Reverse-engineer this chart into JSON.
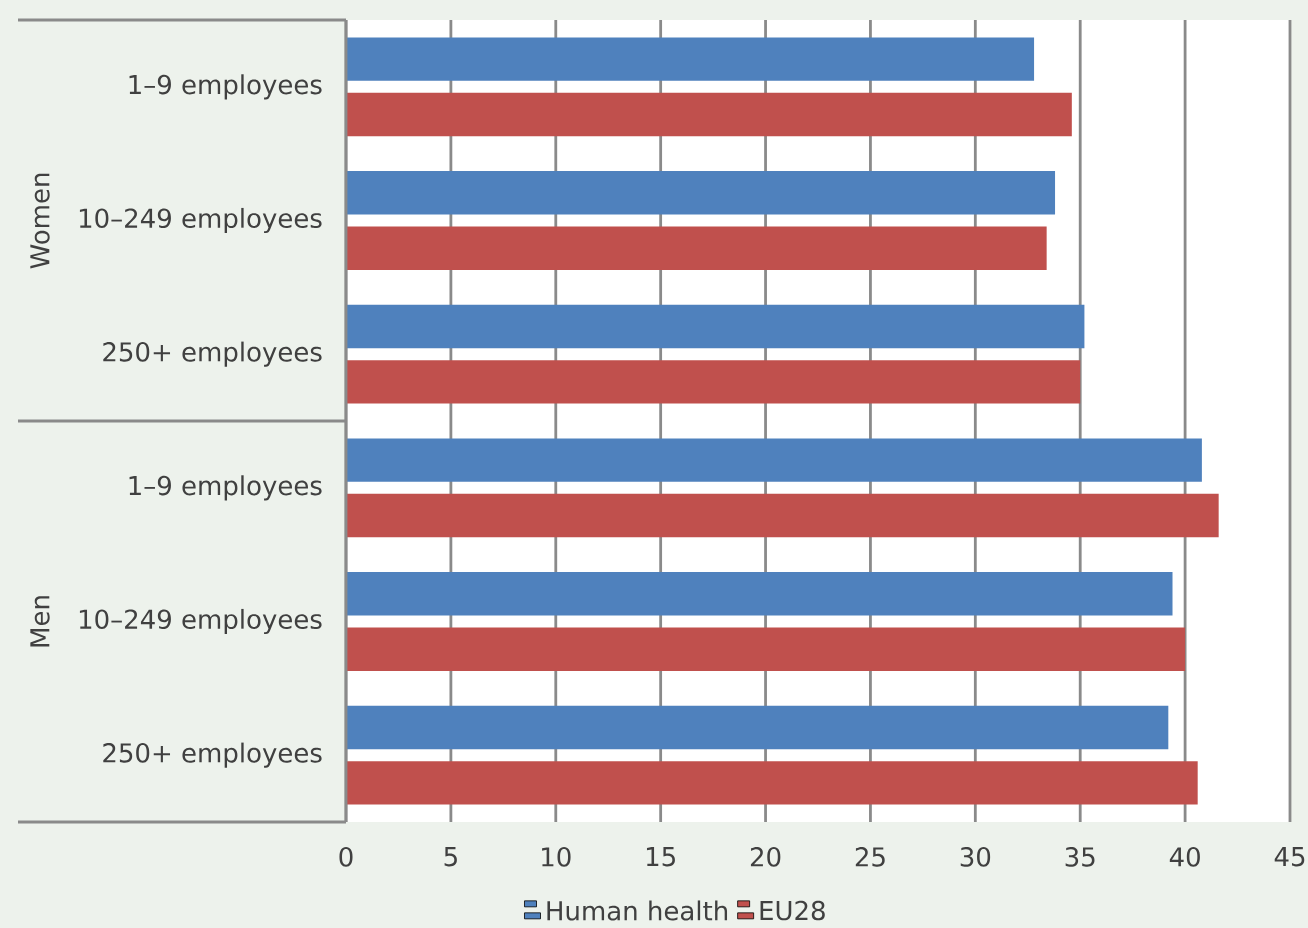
{
  "chart_data": {
    "type": "bar",
    "orientation": "horizontal",
    "categories": [
      "1–9 employees",
      "10–249 employees",
      "250+ employees",
      "1–9 employees",
      "10–249 employees",
      "250+ employees"
    ],
    "series": [
      {
        "name": "Human health",
        "color": "#4f81bd",
        "values": [
          32.8,
          33.8,
          35.2,
          40.8,
          39.4,
          39.2
        ]
      },
      {
        "name": "EU28",
        "color": "#c0504d",
        "values": [
          34.6,
          33.4,
          35.0,
          41.6,
          40.0,
          40.6
        ]
      }
    ],
    "xlim": [
      0,
      45
    ],
    "xticks": [
      0,
      5,
      10,
      15,
      20,
      25,
      30,
      35,
      40,
      45
    ],
    "grid": "x",
    "legend": "bottom",
    "annotations": [
      "Women",
      "Men"
    ]
  }
}
